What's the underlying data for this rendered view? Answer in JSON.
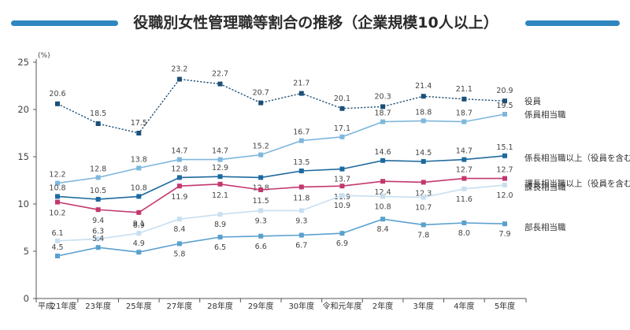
{
  "chart_data": {
    "type": "line",
    "title": "役職別女性管理職等割合の推移（企業規模10人以上）",
    "ylabel": "(%)",
    "ylim": [
      0,
      25
    ],
    "yticks": [
      0,
      5,
      10,
      15,
      20,
      25
    ],
    "grid": false,
    "x_prefix": "平成",
    "categories": [
      "21年度",
      "23年度",
      "25年度",
      "27年度",
      "28年度",
      "29年度",
      "30年度",
      "令和元年度",
      "2年度",
      "3年度",
      "4年度",
      "5年度"
    ],
    "series": [
      {
        "name": "役員",
        "color": "#1c4f77",
        "dashed": true,
        "values": [
          20.6,
          18.5,
          17.5,
          23.2,
          22.7,
          20.7,
          21.7,
          20.1,
          20.3,
          21.4,
          21.1,
          20.9
        ],
        "labels": [
          "20.6",
          "18.5",
          "17.5",
          "23.2",
          "22.7",
          "20.7",
          "21.7",
          "20.1",
          "20.3",
          "21.4",
          "21.1",
          "20.9"
        ]
      },
      {
        "name": "係員相当職",
        "color": "#7fb7dc",
        "dashed": false,
        "values": [
          12.2,
          12.8,
          13.8,
          14.7,
          14.7,
          15.2,
          16.7,
          17.1,
          18.7,
          18.8,
          18.7,
          19.5
        ],
        "labels": [
          "12.2",
          "12.8",
          "13.8",
          "14.7",
          "14.7",
          "15.2",
          "16.7",
          "17.1",
          "18.7",
          "18.8",
          "18.7",
          "19.5"
        ]
      },
      {
        "name": "係長相当職以上（役員を含む）",
        "color": "#1e6aa0",
        "dashed": false,
        "values": [
          10.8,
          10.5,
          10.8,
          12.8,
          12.9,
          12.8,
          13.5,
          13.7,
          14.6,
          14.5,
          14.7,
          15.1
        ],
        "labels": [
          "10.8",
          "10.5",
          "10.8",
          "12.8",
          "12.9",
          "12.8",
          "13.5",
          "13.7",
          "14.6",
          "14.5",
          "14.7",
          "15.1"
        ]
      },
      {
        "name": "課長相当職以上（役員を含む）",
        "color": "#c2386e",
        "dashed": false,
        "values": [
          10.2,
          9.4,
          9.1,
          11.9,
          12.1,
          11.5,
          11.8,
          11.9,
          12.4,
          12.3,
          12.7,
          12.7
        ],
        "labels": [
          "10.2",
          "9.4",
          "9.1",
          "11.9",
          "12.1",
          "11.5",
          "11.8",
          "11.9",
          "12.4",
          "12.3",
          "12.7",
          "12.7"
        ]
      },
      {
        "name": "課長相当職",
        "color": "#c8dff0",
        "dashed": false,
        "values": [
          6.1,
          6.3,
          6.9,
          8.4,
          8.9,
          9.3,
          9.3,
          10.9,
          10.8,
          10.7,
          11.6,
          12.0
        ],
        "labels": [
          "6.1",
          "6.3",
          "6.9",
          "8.4",
          "8.9",
          "9.3",
          "9.3",
          "10.9",
          "10.8",
          "10.7",
          "11.6",
          "12.0"
        ]
      },
      {
        "name": "部長相当職",
        "color": "#5aa0cf",
        "dashed": false,
        "values": [
          4.5,
          5.4,
          4.9,
          5.8,
          6.5,
          6.6,
          6.7,
          6.9,
          8.4,
          7.8,
          8.0,
          7.9
        ],
        "labels": [
          "4.5",
          "5.4",
          "4.9",
          "5.8",
          "6.5",
          "6.6",
          "6.7",
          "6.9",
          "8.4",
          "7.8",
          "8.0",
          "7.9"
        ]
      }
    ]
  },
  "theme": {
    "title_bar_color": "#2f86c0",
    "axis_color": "#555555"
  }
}
